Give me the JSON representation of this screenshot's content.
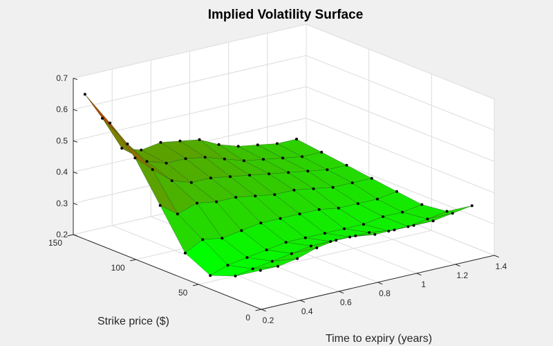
{
  "chart_data": {
    "type": "surface",
    "title": "Implied Volatility Surface",
    "xlabel": "Time to expiry (years)",
    "ylabel": "Strike price ($)",
    "zlabel": "",
    "xlim": [
      0.2,
      1.4
    ],
    "ylim": [
      0,
      150
    ],
    "zlim": [
      0.2,
      0.7
    ],
    "xticks": [
      "0.2",
      "0.4",
      "0.6",
      "0.8",
      "1",
      "1.2",
      "1.4"
    ],
    "yticks": [
      "0",
      "50",
      "100",
      "150"
    ],
    "zticks": [
      "0.2",
      "0.3",
      "0.4",
      "0.5",
      "0.6",
      "0.7"
    ],
    "grid": true,
    "colormap": [
      "#ff0000",
      "#00ff00"
    ],
    "surface": {
      "expiries": [
        0.26,
        0.35,
        0.45,
        0.55,
        0.65,
        0.75,
        0.85,
        0.95,
        1.05,
        1.15,
        1.25,
        1.35
      ],
      "strikes": [
        10,
        30,
        50,
        70,
        90,
        110,
        130,
        150
      ],
      "iv": [
        [
          0.3,
          0.25,
          0.22,
          0.26,
          0.38,
          0.5,
          0.58,
          0.64
        ],
        [
          0.3,
          0.26,
          0.24,
          0.29,
          0.34,
          0.45,
          0.5,
          0.55
        ],
        [
          0.31,
          0.27,
          0.25,
          0.28,
          0.36,
          0.4,
          0.43,
          0.44
        ],
        [
          0.33,
          0.28,
          0.26,
          0.29,
          0.35,
          0.38,
          0.41,
          0.42
        ],
        [
          0.34,
          0.29,
          0.27,
          0.3,
          0.35,
          0.38,
          0.41,
          0.43
        ],
        [
          0.34,
          0.29,
          0.27,
          0.3,
          0.34,
          0.37,
          0.4,
          0.42
        ],
        [
          0.33,
          0.29,
          0.27,
          0.3,
          0.33,
          0.36,
          0.38,
          0.41
        ],
        [
          0.33,
          0.29,
          0.27,
          0.3,
          0.33,
          0.35,
          0.36,
          0.38
        ],
        [
          0.33,
          0.28,
          0.27,
          0.29,
          0.32,
          0.34,
          0.35,
          0.36
        ],
        [
          0.33,
          0.28,
          0.28,
          0.29,
          0.31,
          0.33,
          0.34,
          0.35
        ],
        [
          0.34,
          0.29,
          0.28,
          0.29,
          0.31,
          0.32,
          0.33,
          0.34
        ],
        [
          0.35,
          0.3,
          0.29,
          0.3,
          0.31,
          0.32,
          0.33,
          0.34
        ]
      ]
    }
  }
}
